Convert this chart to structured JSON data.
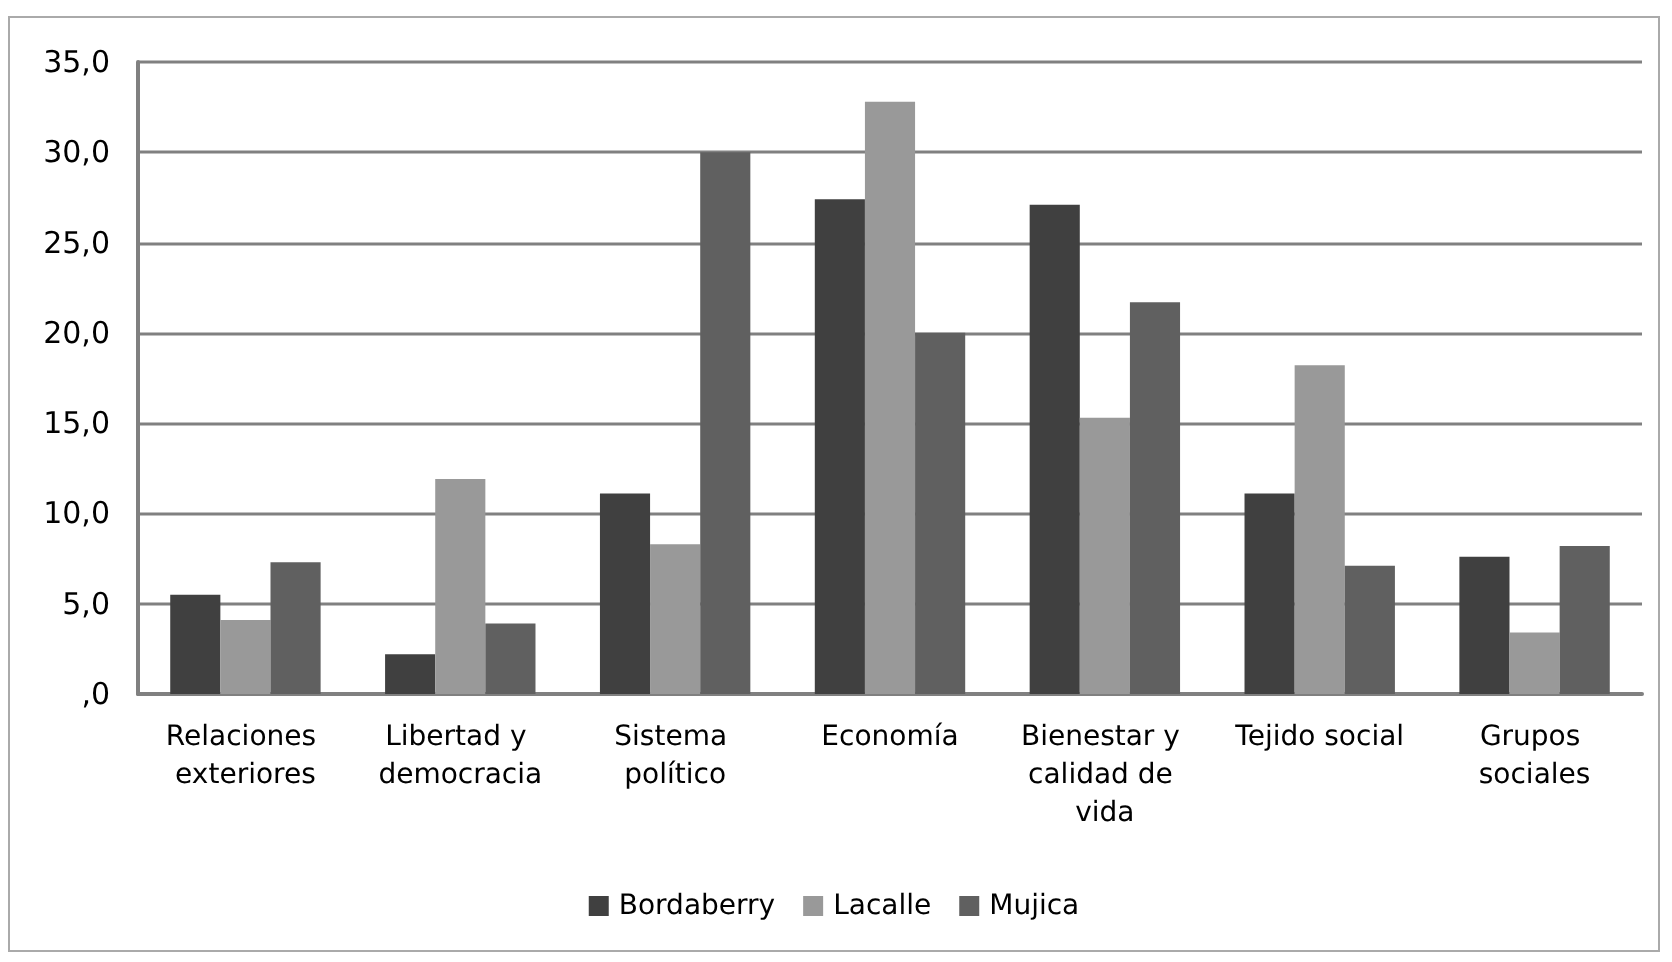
{
  "chart_data": {
    "type": "bar",
    "categories": [
      "Relaciones exteriores",
      "Libertad y democracia",
      "Sistema político",
      "Economía",
      "Bienestar y calidad de vida",
      "Tejido social",
      "Grupos sociales"
    ],
    "series": [
      {
        "name": "Bordaberry",
        "color": "#404040",
        "values": [
          5.5,
          2.2,
          11.1,
          27.4,
          27.1,
          11.1,
          7.6
        ]
      },
      {
        "name": "Lacalle",
        "color": "#999999",
        "values": [
          4.1,
          11.9,
          8.3,
          32.8,
          15.3,
          18.2,
          3.4
        ]
      },
      {
        "name": "Mujica",
        "color": "#606060",
        "values": [
          7.3,
          3.9,
          30.0,
          20.0,
          21.7,
          7.1,
          8.2
        ]
      }
    ],
    "ylim": [
      0,
      35
    ],
    "yticks": [
      {
        "value": 0,
        "label": ",0"
      },
      {
        "value": 5,
        "label": "5,0"
      },
      {
        "value": 10,
        "label": "10,0"
      },
      {
        "value": 15,
        "label": "15,0"
      },
      {
        "value": 20,
        "label": "20,0"
      },
      {
        "value": 25,
        "label": "25,0"
      },
      {
        "value": 30,
        "label": "30,0"
      },
      {
        "value": 35,
        "label": "35,0"
      }
    ],
    "grid": "y",
    "legend": "bottom"
  }
}
